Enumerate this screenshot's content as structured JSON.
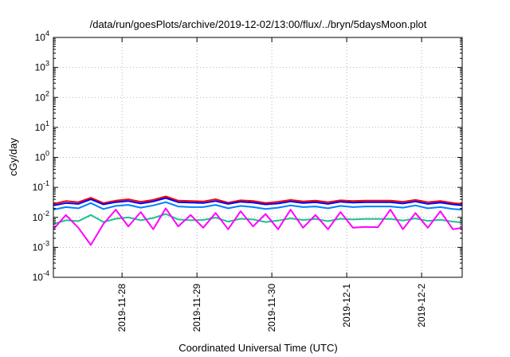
{
  "chart_data": {
    "type": "line",
    "title": "/data/run/goesPlots/archive/2019-12-02/13:00/flux/../bryn/5daysMoon.plot",
    "xlabel": "Coordinated Universal Time (UTC)",
    "ylabel": "cGy/day",
    "yscale": "log",
    "ylim": [
      0.0001,
      10000
    ],
    "y_ticks": [
      {
        "value": 0.0001,
        "base": "10",
        "exp": "-4"
      },
      {
        "value": 0.001,
        "base": "10",
        "exp": "-3"
      },
      {
        "value": 0.01,
        "base": "10",
        "exp": "-2"
      },
      {
        "value": 0.1,
        "base": "10",
        "exp": "-1"
      },
      {
        "value": 1,
        "base": "10",
        "exp": "0"
      },
      {
        "value": 10,
        "base": "10",
        "exp": "1"
      },
      {
        "value": 100,
        "base": "10",
        "exp": "2"
      },
      {
        "value": 1000,
        "base": "10",
        "exp": "3"
      },
      {
        "value": 10000,
        "base": "10",
        "exp": "4"
      }
    ],
    "xlim": [
      "2019-11-27T02:00",
      "2019-12-02T13:00"
    ],
    "x_ticks": [
      "2019-11-28",
      "2019-11-29",
      "2019-11-30",
      "2019-12-1",
      "2019-12-2"
    ],
    "x_tick_dates": [
      "2019-11-28T00:00",
      "2019-11-29T00:00",
      "2019-11-30T00:00",
      "2019-12-01T00:00",
      "2019-12-02T00:00"
    ],
    "grid": true,
    "legend": "none",
    "x": [
      "2019-11-27T02:00",
      "2019-11-27T06:00",
      "2019-11-27T10:00",
      "2019-11-27T14:00",
      "2019-11-27T18:00",
      "2019-11-27T22:00",
      "2019-11-28T02:00",
      "2019-11-28T06:00",
      "2019-11-28T10:00",
      "2019-11-28T14:00",
      "2019-11-28T18:00",
      "2019-11-28T22:00",
      "2019-11-29T02:00",
      "2019-11-29T06:00",
      "2019-11-29T10:00",
      "2019-11-29T14:00",
      "2019-11-29T18:00",
      "2019-11-29T22:00",
      "2019-11-30T02:00",
      "2019-11-30T06:00",
      "2019-11-30T10:00",
      "2019-11-30T14:00",
      "2019-11-30T18:00",
      "2019-11-30T22:00",
      "2019-12-01T02:00",
      "2019-12-01T06:00",
      "2019-12-01T10:00",
      "2019-12-01T14:00",
      "2019-12-01T18:00",
      "2019-12-01T22:00",
      "2019-12-02T02:00",
      "2019-12-02T06:00",
      "2019-12-02T10:00",
      "2019-12-02T13:00"
    ],
    "series": [
      {
        "color": "#ff0000",
        "values": [
          0.028,
          0.035,
          0.032,
          0.045,
          0.03,
          0.036,
          0.04,
          0.033,
          0.038,
          0.05,
          0.036,
          0.035,
          0.034,
          0.04,
          0.031,
          0.037,
          0.035,
          0.03,
          0.033,
          0.038,
          0.034,
          0.036,
          0.032,
          0.037,
          0.035,
          0.036,
          0.036,
          0.036,
          0.033,
          0.038,
          0.032,
          0.035,
          0.03,
          0.028
        ]
      },
      {
        "color": "#0000ff",
        "values": [
          0.025,
          0.03,
          0.028,
          0.04,
          0.027,
          0.032,
          0.035,
          0.029,
          0.034,
          0.044,
          0.032,
          0.031,
          0.03,
          0.035,
          0.028,
          0.033,
          0.031,
          0.027,
          0.029,
          0.034,
          0.03,
          0.032,
          0.028,
          0.033,
          0.031,
          0.032,
          0.032,
          0.032,
          0.029,
          0.034,
          0.028,
          0.031,
          0.027,
          0.025
        ]
      },
      {
        "color": "#0080ff",
        "values": [
          0.018,
          0.022,
          0.02,
          0.03,
          0.019,
          0.024,
          0.026,
          0.021,
          0.025,
          0.032,
          0.023,
          0.022,
          0.022,
          0.026,
          0.02,
          0.024,
          0.022,
          0.019,
          0.021,
          0.025,
          0.022,
          0.023,
          0.02,
          0.024,
          0.022,
          0.023,
          0.023,
          0.023,
          0.021,
          0.025,
          0.02,
          0.022,
          0.019,
          0.018
        ]
      },
      {
        "color": "#20c090",
        "values": [
          0.006,
          0.008,
          0.0075,
          0.012,
          0.007,
          0.009,
          0.01,
          0.008,
          0.0095,
          0.013,
          0.0085,
          0.008,
          0.0082,
          0.0098,
          0.0072,
          0.009,
          0.0085,
          0.007,
          0.0078,
          0.0092,
          0.0082,
          0.0088,
          0.0075,
          0.009,
          0.0085,
          0.0088,
          0.0088,
          0.0088,
          0.0078,
          0.0092,
          0.0076,
          0.0083,
          0.0072,
          0.0068
        ]
      },
      {
        "color": "#ff00ff",
        "values": [
          0.004,
          0.012,
          0.0045,
          0.0012,
          0.006,
          0.018,
          0.005,
          0.015,
          0.004,
          0.02,
          0.005,
          0.012,
          0.0045,
          0.014,
          0.004,
          0.016,
          0.005,
          0.013,
          0.004,
          0.018,
          0.0045,
          0.012,
          0.004,
          0.015,
          0.0045,
          0.0048,
          0.0047,
          0.018,
          0.004,
          0.014,
          0.0045,
          0.016,
          0.004,
          0.0045
        ]
      }
    ]
  }
}
